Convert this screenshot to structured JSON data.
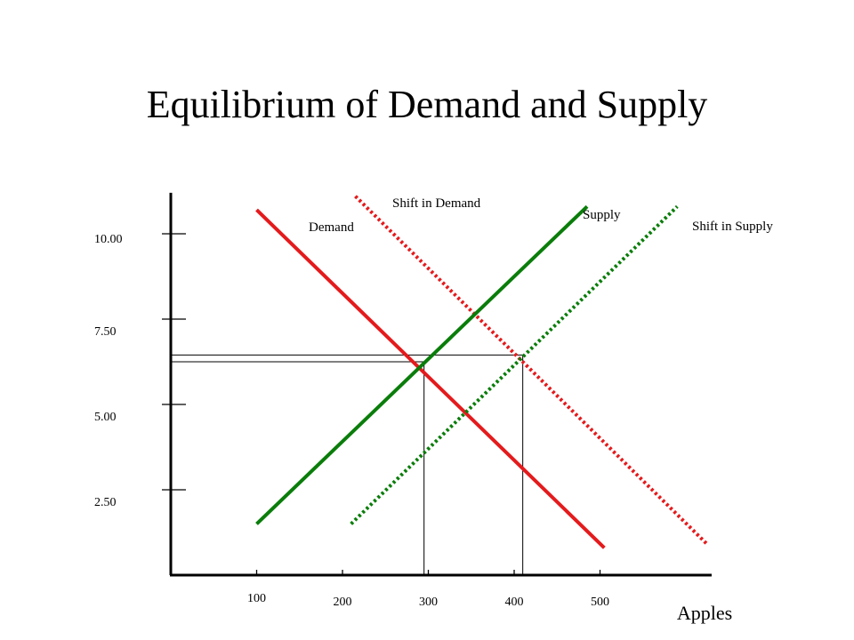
{
  "chart_data": {
    "type": "line",
    "title": "Equilibrium of Demand and Supply",
    "xlabel": "Apples",
    "ylabel": "",
    "x_ticks": [
      {
        "value": 100,
        "label": "100"
      },
      {
        "value": 200,
        "label": "200"
      },
      {
        "value": 300,
        "label": "300"
      },
      {
        "value": 400,
        "label": "400"
      },
      {
        "value": 500,
        "label": "500"
      }
    ],
    "y_ticks": [
      {
        "value": 2.5,
        "label": "2.50"
      },
      {
        "value": 5.0,
        "label": "5.00"
      },
      {
        "value": 7.5,
        "label": "7.50"
      },
      {
        "value": 10.0,
        "label": "10.00"
      }
    ],
    "xlim": [
      0,
      630
    ],
    "ylim": [
      0,
      11.2
    ],
    "series": [
      {
        "name": "Demand",
        "color": "#e41a1c",
        "style": "solid",
        "points": [
          [
            100,
            10.7
          ],
          [
            505,
            0.8
          ]
        ]
      },
      {
        "name": "Shift in Demand",
        "color": "#e41a1c",
        "style": "dotted",
        "points": [
          [
            215,
            11.1
          ],
          [
            625,
            0.9
          ]
        ]
      },
      {
        "name": "Supply",
        "color": "#0a7d0a",
        "style": "solid",
        "points": [
          [
            100,
            1.5
          ],
          [
            485,
            10.8
          ]
        ]
      },
      {
        "name": "Shift in Supply",
        "color": "#0a7d0a",
        "style": "dotted",
        "points": [
          [
            210,
            1.5
          ],
          [
            590,
            10.8
          ]
        ]
      }
    ],
    "reference_lines": [
      {
        "x": 295,
        "y": 6.25
      },
      {
        "x": 410,
        "y": 6.45
      }
    ]
  }
}
